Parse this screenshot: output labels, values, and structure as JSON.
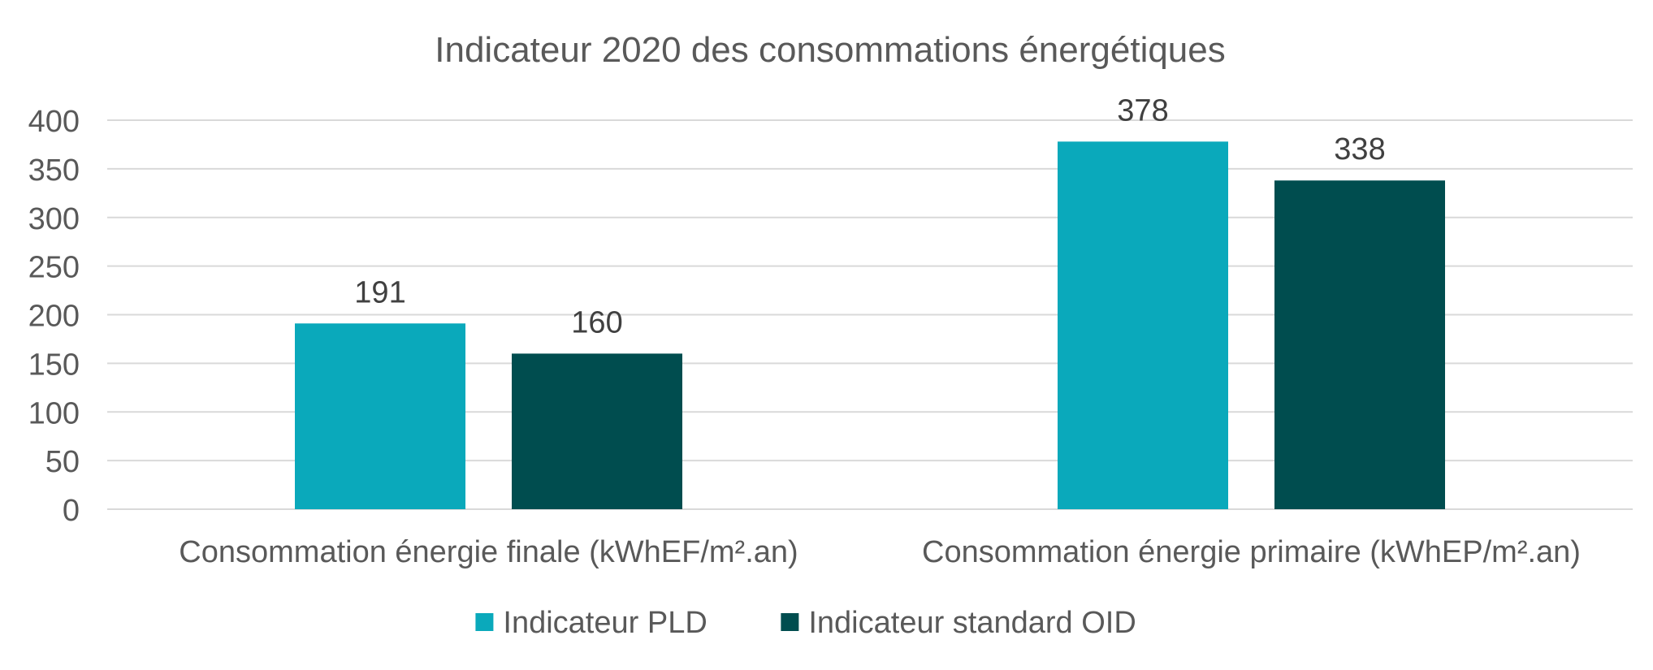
{
  "chart_data": {
    "type": "bar",
    "title": "Indicateur 2020 des consommations énergétiques",
    "categories": [
      "Consommation énergie finale (kWhEF/m².an)",
      "Consommation énergie primaire (kWhEP/m².an)"
    ],
    "series": [
      {
        "name": "Indicateur PLD",
        "values": [
          191,
          378
        ],
        "color": "#0aa9bb"
      },
      {
        "name": "Indicateur standard OID",
        "values": [
          160,
          338
        ],
        "color": "#004d4f"
      }
    ],
    "ylim": [
      0,
      400
    ],
    "yticks": [
      "0",
      "50",
      "100",
      "150",
      "200",
      "250",
      "300",
      "350",
      "400"
    ],
    "grid": true,
    "legend": "bottom-center",
    "data_labels": true,
    "xlabel": "",
    "ylabel": ""
  },
  "colors": {
    "grid": "#d9d9d9",
    "text": "#595959",
    "label": "#404040"
  }
}
